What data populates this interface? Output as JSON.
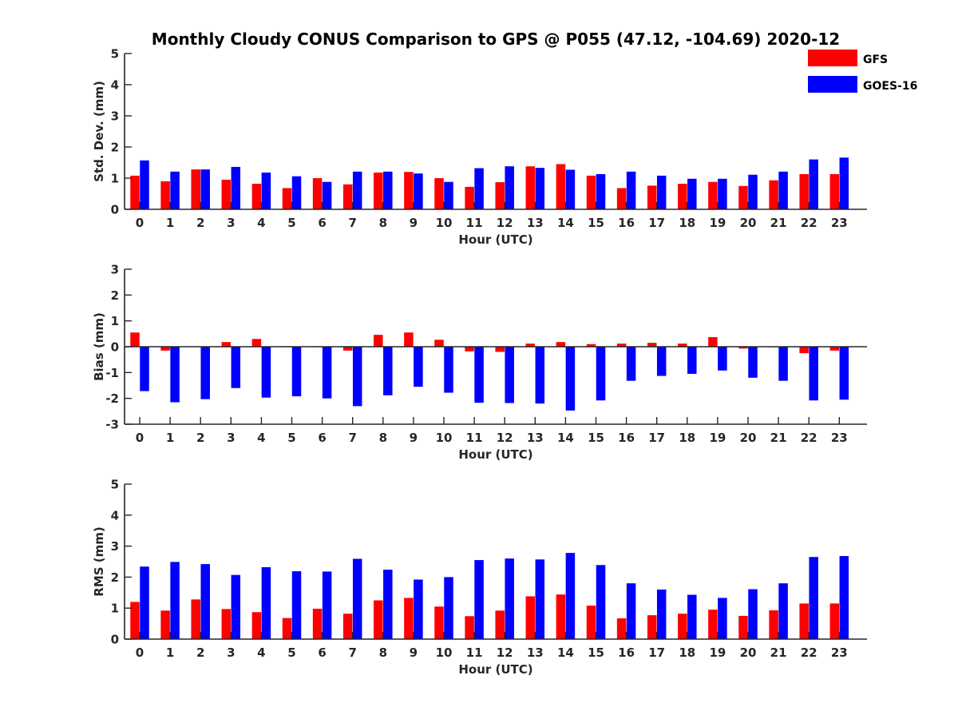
{
  "chart_data": {
    "title": "Monthly Cloudy CONUS Comparison to GPS @ P055 (47.12, -104.69) 2020-12",
    "legend": {
      "placement": "top-right",
      "entries": [
        {
          "name": "GFS",
          "color": "#ff0000"
        },
        {
          "name": "GOES-16",
          "color": "#0000ff"
        }
      ]
    },
    "colors": {
      "GFS": "#ff0000",
      "GOES-16": "#0000ff",
      "axis": "#262626"
    },
    "panels": [
      {
        "type": "bar",
        "ylabel": "Std. Dev. (mm)",
        "xlabel": "Hour (UTC)",
        "ylim": [
          0,
          5
        ],
        "yticks": [
          0,
          1,
          2,
          3,
          4,
          5
        ],
        "categories": [
          "0",
          "1",
          "2",
          "3",
          "4",
          "5",
          "6",
          "7",
          "8",
          "9",
          "10",
          "11",
          "12",
          "13",
          "14",
          "15",
          "16",
          "17",
          "18",
          "19",
          "20",
          "21",
          "22",
          "23"
        ],
        "series": [
          {
            "name": "GFS",
            "values": [
              1.08,
              0.9,
              1.28,
              0.95,
              0.82,
              0.68,
              1.0,
              0.8,
              1.18,
              1.2,
              1.0,
              0.72,
              0.87,
              1.38,
              1.45,
              1.08,
              0.68,
              0.76,
              0.82,
              0.88,
              0.75,
              0.93,
              1.13,
              1.13
            ]
          },
          {
            "name": "GOES-16",
            "values": [
              1.57,
              1.21,
              1.28,
              1.36,
              1.18,
              1.06,
              0.88,
              1.21,
              1.21,
              1.15,
              0.88,
              1.32,
              1.38,
              1.33,
              1.27,
              1.13,
              1.21,
              1.08,
              0.98,
              0.98,
              1.11,
              1.21,
              1.6,
              1.66
            ]
          }
        ]
      },
      {
        "type": "bar",
        "ylabel": "Bias (mm)",
        "xlabel": "Hour (UTC)",
        "ylim": [
          -3,
          3
        ],
        "yticks": [
          -3,
          -2,
          -1,
          0,
          1,
          2,
          3
        ],
        "categories": [
          "0",
          "1",
          "2",
          "3",
          "4",
          "5",
          "6",
          "7",
          "8",
          "9",
          "10",
          "11",
          "12",
          "13",
          "14",
          "15",
          "16",
          "17",
          "18",
          "19",
          "20",
          "21",
          "22",
          "23"
        ],
        "series": [
          {
            "name": "GFS",
            "values": [
              0.55,
              -0.15,
              0.0,
              0.18,
              0.3,
              0.02,
              0.02,
              -0.15,
              0.46,
              0.55,
              0.27,
              -0.18,
              -0.2,
              0.12,
              0.18,
              0.1,
              0.12,
              0.15,
              0.12,
              0.37,
              -0.07,
              -0.02,
              -0.25,
              -0.15
            ]
          },
          {
            "name": "GOES-16",
            "values": [
              -1.72,
              -2.15,
              -2.03,
              -1.6,
              -1.97,
              -1.92,
              -2.0,
              -2.3,
              -1.88,
              -1.55,
              -1.78,
              -2.17,
              -2.18,
              -2.2,
              -2.47,
              -2.08,
              -1.32,
              -1.13,
              -1.05,
              -0.92,
              -1.2,
              -1.32,
              -2.08,
              -2.05
            ]
          }
        ]
      },
      {
        "type": "bar",
        "ylabel": "RMS (mm)",
        "xlabel": "Hour (UTC)",
        "ylim": [
          0,
          5
        ],
        "yticks": [
          0,
          1,
          2,
          3,
          4,
          5
        ],
        "categories": [
          "0",
          "1",
          "2",
          "3",
          "4",
          "5",
          "6",
          "7",
          "8",
          "9",
          "10",
          "11",
          "12",
          "13",
          "14",
          "15",
          "16",
          "17",
          "18",
          "19",
          "20",
          "21",
          "22",
          "23"
        ],
        "series": [
          {
            "name": "GFS",
            "values": [
              1.2,
              0.92,
              1.28,
              0.97,
              0.87,
              0.68,
              0.98,
              0.82,
              1.25,
              1.33,
              1.05,
              0.74,
              0.92,
              1.38,
              1.44,
              1.08,
              0.67,
              0.77,
              0.82,
              0.95,
              0.75,
              0.93,
              1.15,
              1.15
            ]
          },
          {
            "name": "GOES-16",
            "values": [
              2.34,
              2.49,
              2.42,
              2.07,
              2.32,
              2.19,
              2.18,
              2.59,
              2.24,
              1.92,
              2.0,
              2.55,
              2.6,
              2.57,
              2.78,
              2.39,
              1.8,
              1.6,
              1.43,
              1.33,
              1.61,
              1.8,
              2.65,
              2.68
            ]
          }
        ]
      }
    ]
  }
}
